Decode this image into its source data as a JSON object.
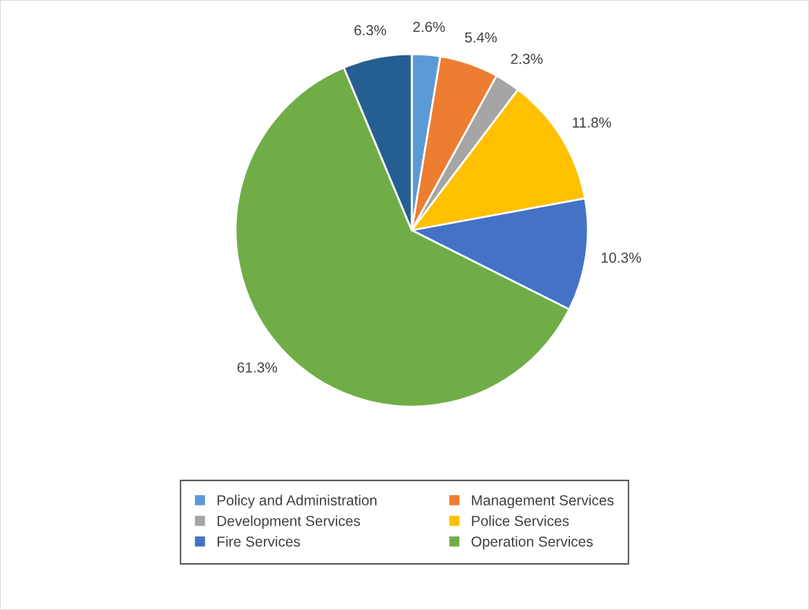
{
  "chart_data": {
    "type": "pie",
    "categories": [
      "Policy and Administration",
      "Management Services",
      "Development Services",
      "Police Services",
      "Fire Services",
      "Operation Services",
      null
    ],
    "values": [
      2.6,
      5.4,
      2.3,
      11.8,
      10.3,
      61.3,
      6.3
    ],
    "colors": [
      "#5b9bd5",
      "#ed7d31",
      "#a5a5a5",
      "#ffc000",
      "#4472c4",
      "#70ad47",
      "#255e91"
    ],
    "value_labels": [
      "2.6%",
      "5.4%",
      "2.3%",
      "11.8%",
      "10.3%",
      "61.3%",
      "6.3%"
    ],
    "legend": "bottom"
  }
}
